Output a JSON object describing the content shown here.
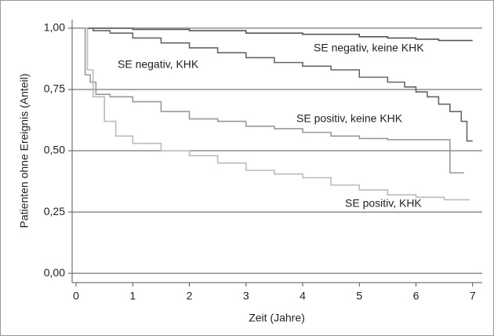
{
  "chart_data": {
    "type": "line",
    "step": true,
    "xlabel": "Zeit (Jahre)",
    "ylabel": "Patienten ohne Ereignis (Anteil)",
    "xlim": [
      -0.07,
      7.17
    ],
    "ylim": [
      -0.038,
      1.035
    ],
    "xticks": [
      0,
      1,
      2,
      3,
      4,
      5,
      6,
      7
    ],
    "yticks": [
      {
        "value": 0,
        "label": "0,00"
      },
      {
        "value": 0.25,
        "label": "0,25"
      },
      {
        "value": 0.5,
        "label": "0,50"
      },
      {
        "value": 0.75,
        "label": "0,75"
      },
      {
        "value": 1,
        "label": "1,00"
      }
    ],
    "grid": true,
    "series": [
      {
        "name": "SE negativ, keine KHK",
        "color": "#555555",
        "x": [
          0.15,
          1,
          2,
          3,
          4,
          5,
          5.5,
          6,
          6.4,
          7
        ],
        "values": [
          1.0,
          0.995,
          0.99,
          0.98,
          0.975,
          0.965,
          0.96,
          0.955,
          0.95,
          0.95
        ]
      },
      {
        "name": "SE negativ, KHK",
        "color": "#666666",
        "x": [
          0.15,
          0.3,
          0.6,
          1,
          1.5,
          2,
          2.5,
          3,
          3.5,
          4,
          4.5,
          5,
          5.5,
          5.8,
          6.0,
          6.2,
          6.4,
          6.6,
          6.8,
          6.9,
          7.0
        ],
        "values": [
          1.0,
          0.99,
          0.98,
          0.96,
          0.94,
          0.92,
          0.9,
          0.88,
          0.86,
          0.845,
          0.83,
          0.8,
          0.78,
          0.76,
          0.74,
          0.72,
          0.69,
          0.66,
          0.62,
          0.54,
          0.54
        ]
      },
      {
        "name": "SE positiv, keine KHK",
        "color": "#999999",
        "x": [
          0.15,
          0.16,
          0.25,
          0.35,
          0.6,
          1,
          1.5,
          2,
          2.5,
          3,
          3.5,
          4,
          4.5,
          5,
          5.5,
          6.6,
          6.6,
          6.85
        ],
        "values": [
          1.0,
          0.81,
          0.78,
          0.73,
          0.72,
          0.7,
          0.66,
          0.63,
          0.62,
          0.6,
          0.59,
          0.575,
          0.56,
          0.55,
          0.545,
          0.54,
          0.41,
          0.41
        ]
      },
      {
        "name": "SE positiv, KHK",
        "color": "#bbbbbb",
        "x": [
          0.15,
          0.2,
          0.3,
          0.5,
          0.7,
          1,
          1.5,
          2,
          2.5,
          3,
          3.5,
          4,
          4.5,
          5,
          5.5,
          6,
          6.5,
          6.95
        ],
        "values": [
          1.0,
          0.83,
          0.72,
          0.62,
          0.56,
          0.53,
          0.5,
          0.48,
          0.45,
          0.42,
          0.405,
          0.39,
          0.36,
          0.34,
          0.32,
          0.31,
          0.3,
          0.3
        ]
      }
    ]
  }
}
